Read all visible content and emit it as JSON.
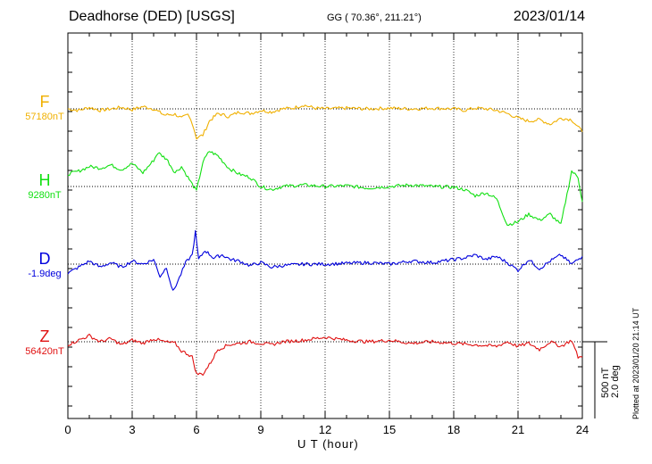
{
  "header": {
    "station": "Deadhorse (DED)  [USGS]",
    "coords": "GG ( 70.36°, 211.21°)",
    "date": "2023/01/14"
  },
  "x_axis": {
    "label": "U T (hour)",
    "ticks": [
      "0",
      "3",
      "6",
      "9",
      "12",
      "15",
      "18",
      "21",
      "24"
    ]
  },
  "scale": {
    "label1": "500 nT",
    "label2": "2.0 deg"
  },
  "plotted_note": "Plotted at 2023/01/20 21:14 UT",
  "colors": {
    "F": "#f0b000",
    "H": "#11e011",
    "D": "#0000dd",
    "Z": "#e01010",
    "axis": "#000000",
    "grid": "#000000"
  },
  "chart_data": {
    "type": "line",
    "x_unit": "hour (UT)",
    "xlim": [
      0,
      24
    ],
    "y_unit": "nT offset from baseline (D in nT-equivalent)",
    "scale_bar": "500 nT / 2.0 deg",
    "series": [
      {
        "name": "F",
        "baseline": "57180nT",
        "x": [
          0,
          0.5,
          1,
          1.5,
          2,
          2.5,
          3,
          3.5,
          4,
          4.5,
          5,
          5.3,
          5.6,
          5.8,
          6,
          6.3,
          6.6,
          7,
          7.5,
          8,
          8.5,
          9,
          9.5,
          10,
          10.5,
          11,
          11.5,
          12,
          13,
          14,
          15,
          16,
          17,
          18,
          18.5,
          19,
          19.5,
          20,
          20.5,
          21,
          21.5,
          22,
          22.5,
          23,
          23.5,
          24
        ],
        "y": [
          0,
          -10,
          10,
          -10,
          0,
          10,
          -5,
          15,
          0,
          -40,
          -35,
          -60,
          -40,
          -90,
          -190,
          -170,
          -80,
          -30,
          -50,
          -20,
          -30,
          -10,
          -20,
          0,
          5,
          25,
          5,
          0,
          5,
          0,
          5,
          0,
          5,
          0,
          -10,
          5,
          0,
          -10,
          -30,
          -60,
          -80,
          -70,
          -100,
          -60,
          -70,
          -150
        ]
      },
      {
        "name": "H",
        "baseline": "9280nT",
        "x": [
          0,
          0.5,
          1,
          1.5,
          2,
          2.5,
          3,
          3.5,
          4,
          4.2,
          4.6,
          5,
          5.3,
          5.6,
          6,
          6.3,
          6.6,
          7,
          7.5,
          8,
          8.5,
          9,
          9.5,
          10,
          11,
          12,
          13,
          14,
          15,
          16,
          17,
          18,
          18.5,
          19,
          19.5,
          20,
          20.5,
          21,
          21.5,
          22,
          22.5,
          23,
          23.5,
          23.8,
          24
        ],
        "y": [
          80,
          100,
          130,
          120,
          140,
          110,
          150,
          90,
          170,
          220,
          180,
          90,
          130,
          60,
          -30,
          160,
          230,
          200,
          120,
          80,
          60,
          0,
          -20,
          0,
          10,
          0,
          5,
          -10,
          0,
          10,
          0,
          -5,
          -20,
          -60,
          -40,
          -80,
          -250,
          -230,
          -180,
          -220,
          -180,
          -250,
          100,
          60,
          -100
        ]
      },
      {
        "name": "D",
        "baseline": "-1.9deg",
        "x": [
          0,
          0.5,
          1,
          1.5,
          2,
          2.5,
          3,
          3.5,
          4,
          4.3,
          4.6,
          4.9,
          5.2,
          5.5,
          5.8,
          5.95,
          6.1,
          6.4,
          6.8,
          7.2,
          7.6,
          8,
          8.5,
          9,
          9.5,
          10,
          11,
          12,
          13,
          14,
          15,
          16,
          17,
          18,
          18.5,
          19,
          19.5,
          20,
          20.5,
          21,
          21.5,
          22,
          22.5,
          23,
          23.5,
          24
        ],
        "y": [
          -60,
          -20,
          20,
          -20,
          10,
          -20,
          20,
          0,
          30,
          -80,
          -20,
          -180,
          -90,
          10,
          60,
          210,
          30,
          90,
          40,
          60,
          30,
          20,
          -10,
          10,
          -20,
          -10,
          0,
          0,
          5,
          10,
          0,
          20,
          10,
          30,
          40,
          60,
          30,
          50,
          10,
          -40,
          30,
          -30,
          20,
          60,
          0,
          50
        ]
      },
      {
        "name": "Z",
        "baseline": "56420nT",
        "x": [
          0,
          0.5,
          1,
          1.5,
          2,
          2.5,
          3,
          3.5,
          4,
          4.5,
          5,
          5.3,
          5.6,
          5.8,
          6,
          6.3,
          6.6,
          7,
          7.5,
          8,
          8.5,
          9,
          9.5,
          10,
          11,
          12,
          13,
          14,
          15,
          16,
          17,
          18,
          19,
          20,
          20.5,
          21,
          21.5,
          22,
          22.5,
          23,
          23.5,
          23.8,
          24
        ],
        "y": [
          -20,
          10,
          40,
          0,
          20,
          -20,
          10,
          -10,
          20,
          0,
          -10,
          -60,
          -80,
          -100,
          -210,
          -210,
          -150,
          -50,
          -20,
          -10,
          0,
          -10,
          -20,
          0,
          10,
          30,
          10,
          0,
          10,
          -10,
          0,
          -10,
          -20,
          -30,
          0,
          -30,
          -10,
          -50,
          0,
          -30,
          10,
          -100,
          -100
        ]
      }
    ]
  }
}
